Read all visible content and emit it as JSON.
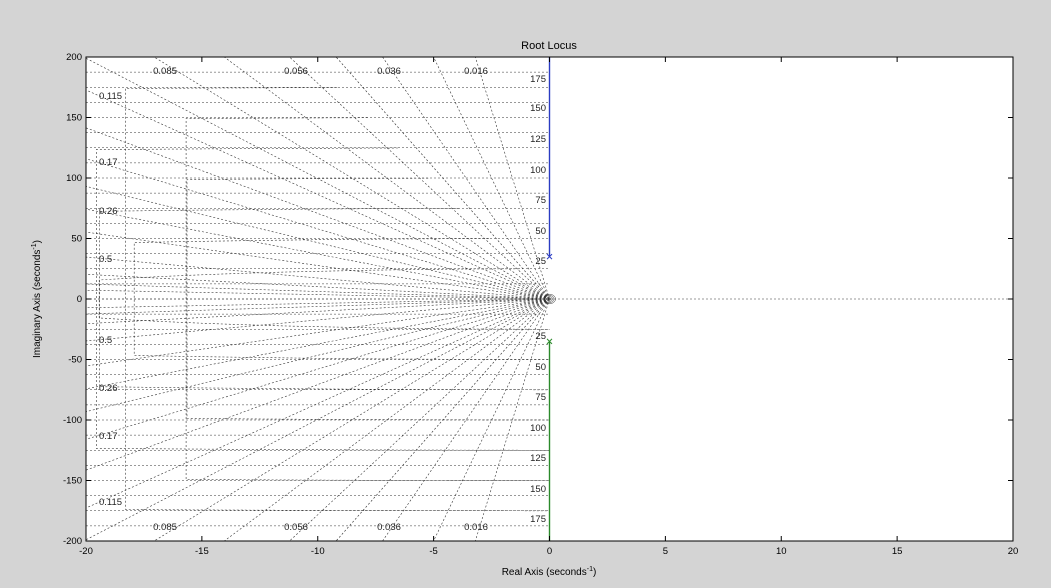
{
  "figure": {
    "background": "#d4d4d4",
    "axes_background": "#ffffff"
  },
  "chart_data": {
    "type": "scatter",
    "title": "Root Locus",
    "xlabel": "Real Axis (seconds",
    "xlabel_sup": "-1",
    "xlabel_end": ")",
    "ylabel": "Imaginary Axis (seconds",
    "ylabel_sup": "-1",
    "ylabel_end": ")",
    "xlim": [
      -20,
      20
    ],
    "ylim": [
      -200,
      200
    ],
    "xticks": [
      -20,
      -15,
      -10,
      -5,
      0,
      5,
      10,
      15,
      20
    ],
    "yticks": [
      200,
      150,
      100,
      50,
      0,
      -50,
      -100,
      -150,
      -200
    ],
    "grid": true,
    "grid_style": "dashed",
    "damping_ratios": [
      0.016,
      0.036,
      0.056,
      0.085,
      0.115,
      0.17,
      0.26,
      0.5
    ],
    "damping_labels_top": [
      "0.085",
      "0.056",
      "0.036",
      "0.016"
    ],
    "damping_labels_left": [
      "0.115",
      "0.17",
      "0.26",
      "0.5"
    ],
    "damping_labels_left_neg": [
      "0.5",
      "0.26",
      "0.17",
      "0.115"
    ],
    "damping_labels_bottom": [
      "0.085",
      "0.056",
      "0.036",
      "0.016"
    ],
    "natural_frequencies": [
      25,
      50,
      75,
      100,
      125,
      150,
      175
    ],
    "natural_frequency_labels_pos": [
      "175",
      "150",
      "125",
      "100",
      "75",
      "50",
      "25"
    ],
    "natural_frequency_labels_neg": [
      "25",
      "50",
      "75",
      "100",
      "125",
      "150",
      "175"
    ],
    "series": [
      {
        "color": "#2b3cc2",
        "type": "locus",
        "x": [
          0,
          0
        ],
        "y": [
          35,
          200
        ]
      },
      {
        "color": "#2b8a2b",
        "type": "locus",
        "x": [
          0,
          0
        ],
        "y": [
          -35,
          -200
        ]
      }
    ],
    "poles": [
      {
        "x": 0,
        "y": 35
      },
      {
        "x": 0,
        "y": -35
      }
    ]
  }
}
